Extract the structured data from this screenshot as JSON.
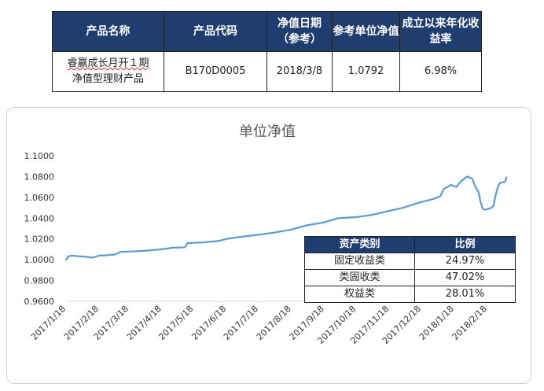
{
  "product_table": {
    "headers": [
      "产品名称",
      "产品代码",
      "净值日期（参考）",
      "参考单位净值",
      "成立以来年化收益率"
    ],
    "row": {
      "name_line1": "睿赢成长月开１期",
      "name_line2": "净值型理财产品",
      "code": "B170D0005",
      "nav_date": "2018/3/8",
      "unit_nav": "1.0792",
      "annualized_return": "6.98%"
    }
  },
  "chart_data": {
    "type": "line",
    "title": "单位净值",
    "xlabel": "",
    "ylabel": "",
    "ylim": [
      0.96,
      1.1
    ],
    "yticks": [
      "0.9600",
      "0.9800",
      "1.0000",
      "1.0200",
      "1.0400",
      "1.0600",
      "1.0800",
      "1.1000"
    ],
    "xticks": [
      "2017/1/18",
      "2017/2/18",
      "2017/3/18",
      "2017/4/18",
      "2017/5/18",
      "2017/6/18",
      "2017/7/18",
      "2017/8/18",
      "2017/9/18",
      "2017/10/18",
      "2017/11/18",
      "2017/12/18",
      "2018/1/18",
      "2018/2/18"
    ],
    "grid": false,
    "line_color": "#5b9bd5",
    "series": [
      {
        "name": "",
        "points": [
          [
            "2017/1/18",
            1.0
          ],
          [
            "2017/1/20",
            1.003
          ],
          [
            "2017/1/23",
            1.004
          ],
          [
            "2017/1/28",
            1.0035
          ],
          [
            "2017/2/4",
            1.003
          ],
          [
            "2017/2/12",
            1.002
          ],
          [
            "2017/2/18",
            1.004
          ],
          [
            "2017/2/28",
            1.0045
          ],
          [
            "2017/3/5",
            1.005
          ],
          [
            "2017/3/10",
            1.0075
          ],
          [
            "2017/3/18",
            1.0078
          ],
          [
            "2017/4/1",
            1.0085
          ],
          [
            "2017/4/18",
            1.01
          ],
          [
            "2017/4/28",
            1.0115
          ],
          [
            "2017/5/10",
            1.012
          ],
          [
            "2017/5/12",
            1.016
          ],
          [
            "2017/5/25",
            1.0165
          ],
          [
            "2017/6/10",
            1.018
          ],
          [
            "2017/6/18",
            1.02
          ],
          [
            "2017/7/1",
            1.022
          ],
          [
            "2017/7/18",
            1.024
          ],
          [
            "2017/8/1",
            1.026
          ],
          [
            "2017/8/18",
            1.029
          ],
          [
            "2017/9/1",
            1.033
          ],
          [
            "2017/9/18",
            1.036
          ],
          [
            "2017/10/1",
            1.04
          ],
          [
            "2017/10/18",
            1.041
          ],
          [
            "2017/11/1",
            1.043
          ],
          [
            "2017/11/18",
            1.047
          ],
          [
            "2017/12/1",
            1.05
          ],
          [
            "2017/12/10",
            1.053
          ],
          [
            "2017/12/18",
            1.0555
          ],
          [
            "2017/12/28",
            1.058
          ],
          [
            "2018/1/5",
            1.061
          ],
          [
            "2018/1/8",
            1.068
          ],
          [
            "2018/1/15",
            1.072
          ],
          [
            "2018/1/20",
            1.07
          ],
          [
            "2018/1/25",
            1.076
          ],
          [
            "2018/1/30",
            1.08
          ],
          [
            "2018/2/4",
            1.078
          ],
          [
            "2018/2/7",
            1.07
          ],
          [
            "2018/2/10",
            1.065
          ],
          [
            "2018/2/12",
            1.055
          ],
          [
            "2018/2/14",
            1.049
          ],
          [
            "2018/2/16",
            1.048
          ],
          [
            "2018/2/19",
            1.049
          ],
          [
            "2018/2/22",
            1.05
          ],
          [
            "2018/2/24",
            1.052
          ],
          [
            "2018/2/26",
            1.062
          ],
          [
            "2018/2/28",
            1.07
          ],
          [
            "2018/3/2",
            1.074
          ],
          [
            "2018/3/5",
            1.0745
          ],
          [
            "2018/3/7",
            1.075
          ],
          [
            "2018/3/8",
            1.0792
          ]
        ]
      }
    ]
  },
  "allocation_table": {
    "headers": [
      "资产类别",
      "比例"
    ],
    "rows": [
      {
        "category": "固定收益类",
        "ratio": "24.97%"
      },
      {
        "category": "类固收类",
        "ratio": "47.02%"
      },
      {
        "category": "权益类",
        "ratio": "28.01%"
      }
    ]
  }
}
